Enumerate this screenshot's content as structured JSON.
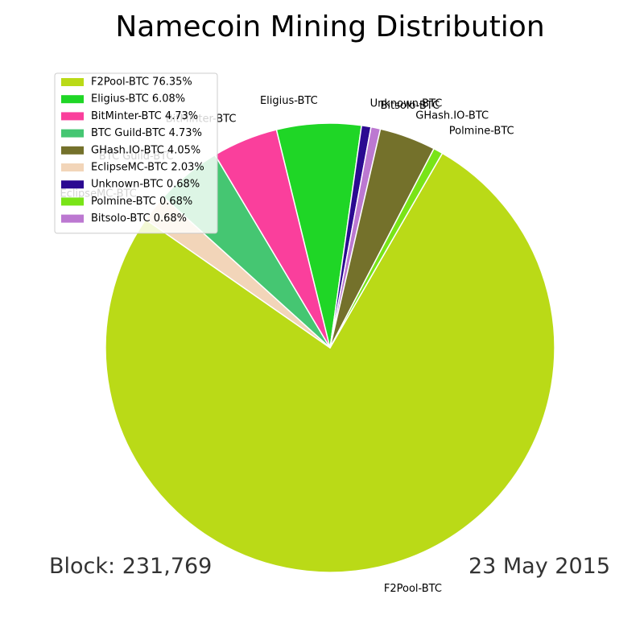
{
  "chart_data": {
    "type": "pie",
    "title": "Namecoin Mining Distribution",
    "slices": [
      {
        "label": "F2Pool-BTC",
        "value": 76.35,
        "legend": "F2Pool-BTC 76.35%",
        "color": "#bada17"
      },
      {
        "label": "EclipseMC-BTC",
        "value": 2.03,
        "legend": "EclipseMC-BTC 2.03%",
        "color": "#f2d5b9"
      },
      {
        "label": "BTC Guild-BTC",
        "value": 4.73,
        "legend": "BTC Guild-BTC 4.73%",
        "color": "#45c672"
      },
      {
        "label": "BitMinter-BTC",
        "value": 4.73,
        "legend": "BitMinter-BTC 4.73%",
        "color": "#fa3f9c"
      },
      {
        "label": "Eligius-BTC",
        "value": 6.08,
        "legend": "Eligius-BTC 6.08%",
        "color": "#1fd626"
      },
      {
        "label": "Unknown-BTC",
        "value": 0.68,
        "legend": "Unknown-BTC 0.68%",
        "color": "#2b0a91"
      },
      {
        "label": "Bitsolo-BTC",
        "value": 0.68,
        "legend": "Bitsolo-BTC 0.68%",
        "color": "#bc78d1"
      },
      {
        "label": "GHash.IO-BTC",
        "value": 4.05,
        "legend": "GHash.IO-BTC 4.05%",
        "color": "#74712b"
      },
      {
        "label": "Polmine-BTC",
        "value": 0.68,
        "legend": "Polmine-BTC 0.68%",
        "color": "#79e417"
      }
    ],
    "legend_order": [
      "F2Pool-BTC",
      "Eligius-BTC",
      "BitMinter-BTC",
      "BTC Guild-BTC",
      "GHash.IO-BTC",
      "EclipseMC-BTC",
      "Unknown-BTC",
      "Polmine-BTC",
      "Bitsolo-BTC"
    ],
    "legend_position": "top-left",
    "start_angle_deg": 60,
    "direction": "clockwise"
  },
  "footer": {
    "block": "Block: 231,769",
    "date": "23 May 2015"
  }
}
